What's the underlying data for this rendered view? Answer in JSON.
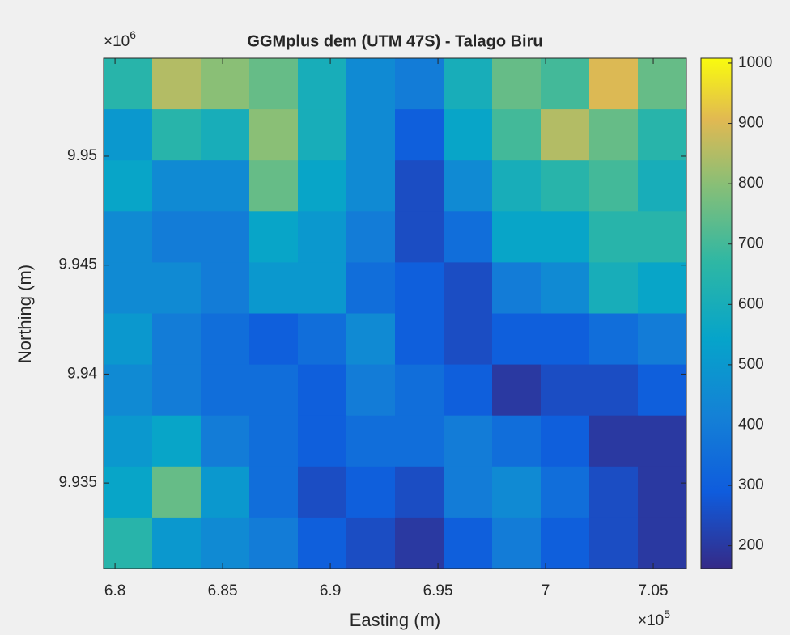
{
  "chart_data": {
    "type": "heatmap",
    "title": "GGMplus dem (UTM 47S) - Talago Biru",
    "x_label": "Easting (m)",
    "y_label": "Northing (m)",
    "x_multiplier": {
      "base": "×10",
      "power": "5"
    },
    "y_multiplier": {
      "base": "×10",
      "power": "6"
    },
    "xlim": [
      679470,
      706540
    ],
    "xticks": [
      {
        "value": 680000,
        "label": "6.8"
      },
      {
        "value": 685000,
        "label": "6.85"
      },
      {
        "value": 690000,
        "label": "6.9"
      },
      {
        "value": 695000,
        "label": "6.95"
      },
      {
        "value": 700000,
        "label": "7"
      },
      {
        "value": 705000,
        "label": "7.05"
      }
    ],
    "ylim": [
      9931070,
      9954490
    ],
    "yticks": [
      {
        "value": 9935000,
        "label": "9.935"
      },
      {
        "value": 9940000,
        "label": "9.94"
      },
      {
        "value": 9945000,
        "label": "9.945"
      },
      {
        "value": 9950000,
        "label": "9.95"
      }
    ],
    "clim": [
      162,
      1008
    ],
    "cticks": [
      200,
      300,
      400,
      500,
      600,
      700,
      800,
      900,
      1000
    ],
    "colormap": "parula",
    "z": [
      [
        650,
        850,
        800,
        750,
        600,
        450,
        400,
        600,
        750,
        700,
        900,
        750
      ],
      [
        500,
        650,
        600,
        800,
        600,
        450,
        300,
        550,
        700,
        850,
        750,
        650
      ],
      [
        550,
        450,
        450,
        750,
        550,
        450,
        250,
        450,
        600,
        650,
        700,
        600
      ],
      [
        450,
        400,
        400,
        550,
        500,
        400,
        250,
        350,
        550,
        550,
        650,
        650
      ],
      [
        450,
        450,
        400,
        500,
        500,
        350,
        300,
        250,
        400,
        450,
        600,
        550
      ],
      [
        500,
        400,
        350,
        300,
        350,
        450,
        300,
        250,
        300,
        300,
        350,
        400
      ],
      [
        450,
        400,
        350,
        350,
        300,
        400,
        350,
        300,
        200,
        250,
        250,
        300
      ],
      [
        500,
        550,
        400,
        350,
        300,
        350,
        350,
        400,
        350,
        300,
        200,
        200
      ],
      [
        550,
        750,
        500,
        350,
        250,
        300,
        250,
        400,
        450,
        350,
        250,
        200
      ],
      [
        650,
        500,
        450,
        400,
        300,
        250,
        200,
        300,
        400,
        300,
        250,
        200
      ]
    ]
  }
}
